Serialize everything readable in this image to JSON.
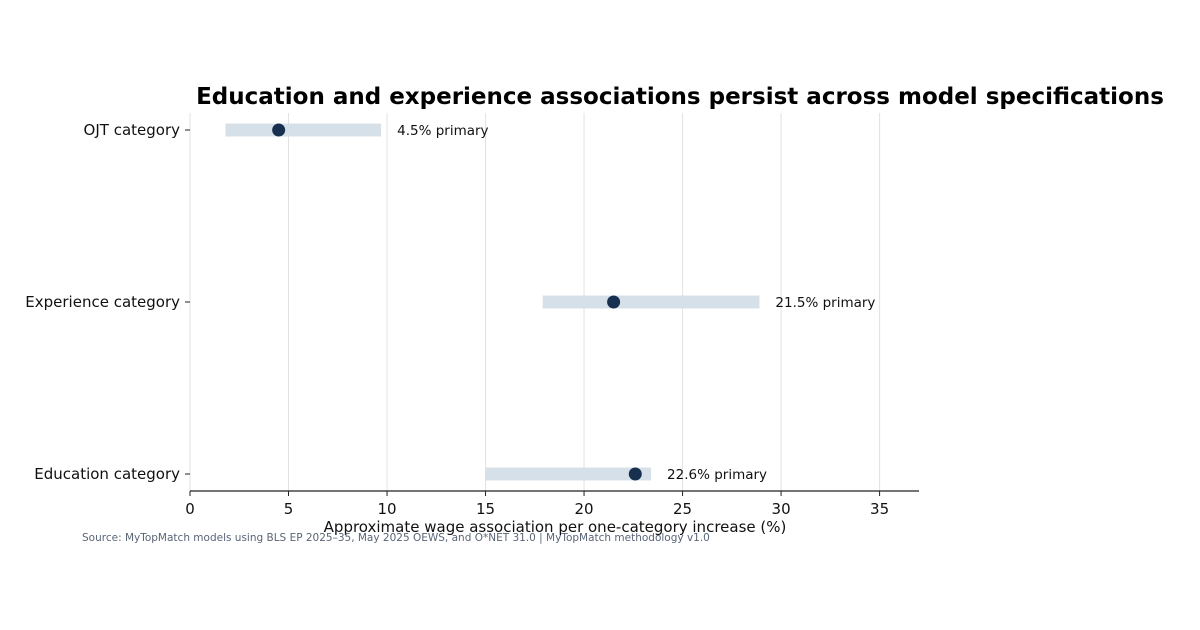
{
  "chart_data": {
    "type": "dot-range",
    "title": "Education and experience associations persist across model specifications",
    "xlabel": "Approximate wage association per one-category increase (%)",
    "xlim": [
      0,
      37
    ],
    "xticks": [
      0,
      5,
      10,
      15,
      20,
      25,
      30,
      35
    ],
    "grid": "vertical",
    "rows": [
      {
        "category": "OJT category",
        "primary": 4.5,
        "range": [
          1.8,
          9.7
        ],
        "label": "4.5% primary"
      },
      {
        "category": "Experience category",
        "primary": 21.5,
        "range": [
          17.9,
          28.9
        ],
        "label": "21.5% primary"
      },
      {
        "category": "Education category",
        "primary": 22.6,
        "range": [
          15.0,
          23.4
        ],
        "label": "22.6% primary"
      }
    ],
    "colors": {
      "point": "#17304f",
      "range": "#d6e0e8",
      "grid": "#e2e2e2",
      "axis": "#222222"
    }
  },
  "source": "Source: MyTopMatch models using BLS EP 2025–35, May 2025 OEWS, and O*NET 31.0 | MyTopMatch methodology v1.0"
}
